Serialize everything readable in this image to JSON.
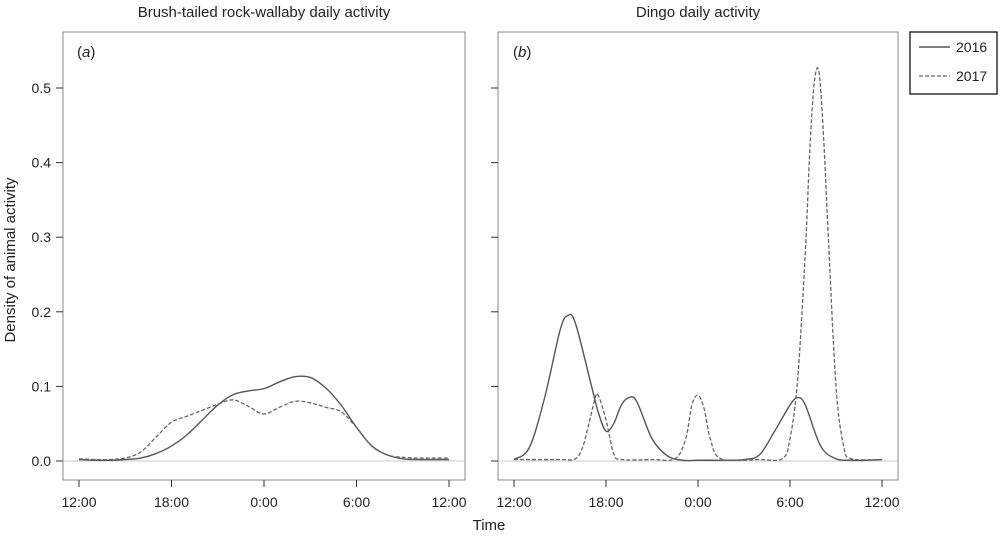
{
  "chart_data": {
    "type": "line",
    "ylabel": "Density of animal activity",
    "xlabel": "Time",
    "ylim": [
      0,
      0.55
    ],
    "y_ticks": [
      0.0,
      0.1,
      0.2,
      0.3,
      0.4,
      0.5
    ],
    "y_tick_labels": [
      "0.0",
      "0.1",
      "0.2",
      "0.3",
      "0.4",
      "0.5"
    ],
    "x_domain_hours_from_noon": [
      -0.6,
      25.2
    ],
    "x_ticks": [
      0,
      6,
      12,
      18,
      24
    ],
    "x_tick_labels": [
      "12:00",
      "18:00",
      "0:00",
      "6:00",
      "12:00"
    ],
    "grid": false,
    "legend": {
      "placement": "outside-top-right",
      "entries": [
        {
          "name": "2016",
          "style": "solid"
        },
        {
          "name": "2017",
          "style": "dashed"
        }
      ]
    },
    "panels": [
      {
        "tag_letter": "a",
        "title": "Brush-tailed rock-wallaby daily activity",
        "series": [
          {
            "name": "2016",
            "x": [
              0,
              1,
              2,
              3,
              4,
              5,
              6,
              7,
              8,
              9,
              10,
              11,
              12,
              13,
              14,
              15,
              16,
              17,
              18,
              19,
              20,
              21,
              22,
              23,
              24
            ],
            "y": [
              0.002,
              0.001,
              0.001,
              0.002,
              0.004,
              0.01,
              0.02,
              0.035,
              0.055,
              0.075,
              0.089,
              0.094,
              0.097,
              0.106,
              0.113,
              0.112,
              0.098,
              0.075,
              0.045,
              0.02,
              0.008,
              0.003,
              0.002,
              0.002,
              0.002
            ]
          },
          {
            "name": "2017",
            "x": [
              0,
              1,
              2,
              3,
              4,
              5,
              6,
              7,
              8,
              9,
              10,
              11,
              12,
              13,
              14,
              15,
              16,
              17,
              18,
              19,
              20,
              21,
              22,
              23,
              24
            ],
            "y": [
              0.003,
              0.002,
              0.002,
              0.004,
              0.012,
              0.032,
              0.052,
              0.06,
              0.068,
              0.076,
              0.082,
              0.073,
              0.063,
              0.072,
              0.08,
              0.078,
              0.072,
              0.066,
              0.045,
              0.02,
              0.008,
              0.005,
              0.004,
              0.004,
              0.004
            ]
          }
        ]
      },
      {
        "tag_letter": "b",
        "title": "Dingo daily activity",
        "series": [
          {
            "name": "2016",
            "x": [
              0,
              1,
              2,
              3,
              3.5,
              4,
              5,
              5.5,
              6,
              6.5,
              7,
              7.5,
              8,
              9,
              10,
              11,
              12,
              13,
              14,
              15,
              16,
              17,
              18,
              18.5,
              19,
              20,
              21,
              22,
              23,
              24
            ],
            "y": [
              0.002,
              0.018,
              0.085,
              0.175,
              0.195,
              0.185,
              0.105,
              0.065,
              0.04,
              0.05,
              0.075,
              0.085,
              0.08,
              0.03,
              0.007,
              0.001,
              0.001,
              0.001,
              0.001,
              0.002,
              0.008,
              0.04,
              0.075,
              0.085,
              0.075,
              0.02,
              0.003,
              0.001,
              0.001,
              0.002
            ]
          },
          {
            "name": "2017",
            "x": [
              0,
              3,
              4,
              4.5,
              5,
              5.3,
              5.5,
              6,
              6.5,
              7,
              9,
              10.5,
              11.2,
              11.6,
              12,
              12.4,
              12.8,
              13.5,
              16,
              17.5,
              18,
              18.5,
              19,
              19.3,
              19.6,
              19.9,
              20.2,
              20.5,
              21,
              21.5,
              22,
              24
            ],
            "y": [
              0.002,
              0.002,
              0.003,
              0.02,
              0.06,
              0.085,
              0.088,
              0.055,
              0.01,
              0.002,
              0.002,
              0.003,
              0.03,
              0.075,
              0.088,
              0.07,
              0.03,
              0.003,
              0.002,
              0.003,
              0.03,
              0.11,
              0.28,
              0.42,
              0.51,
              0.52,
              0.43,
              0.3,
              0.1,
              0.02,
              0.003,
              0.002
            ]
          }
        ]
      }
    ]
  }
}
